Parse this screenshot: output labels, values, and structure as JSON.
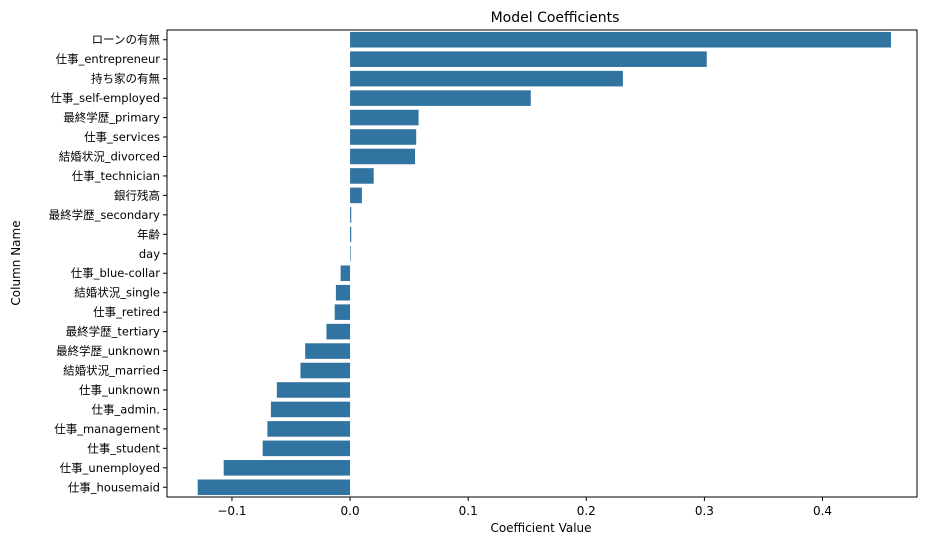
{
  "chart_data": {
    "type": "bar",
    "orientation": "horizontal",
    "title": "Model Coefficients",
    "xlabel": "Coefficient Value",
    "ylabel": "Column Name",
    "xlim": [
      -0.155,
      0.48
    ],
    "xticks": [
      -0.1,
      0.0,
      0.1,
      0.2,
      0.3,
      0.4
    ],
    "xtick_labels": [
      "−0.1",
      "0.0",
      "0.1",
      "0.2",
      "0.3",
      "0.4"
    ],
    "grid": false,
    "bar_color": "#3274a1",
    "categories": [
      "ローンの有無",
      "仕事_entrepreneur",
      "持ち家の有無",
      "仕事_self-employed",
      "最終学歴_primary",
      "仕事_services",
      "結婚状況_divorced",
      "仕事_technician",
      "銀行残高",
      "最終学歴_secondary",
      "年齢",
      "day",
      "仕事_blue-collar",
      "結婚状況_single",
      "仕事_retired",
      "最終学歴_tertiary",
      "最終学歴_unknown",
      "結婚状況_married",
      "仕事_unknown",
      "仕事_admin.",
      "仕事_management",
      "仕事_student",
      "仕事_unemployed",
      "仕事_housemaid"
    ],
    "values": [
      0.458,
      0.302,
      0.231,
      0.153,
      0.058,
      0.056,
      0.055,
      0.02,
      0.01,
      0.001,
      0.001,
      0.0,
      -0.008,
      -0.012,
      -0.013,
      -0.02,
      -0.038,
      -0.042,
      -0.062,
      -0.067,
      -0.07,
      -0.074,
      -0.107,
      -0.129
    ]
  }
}
